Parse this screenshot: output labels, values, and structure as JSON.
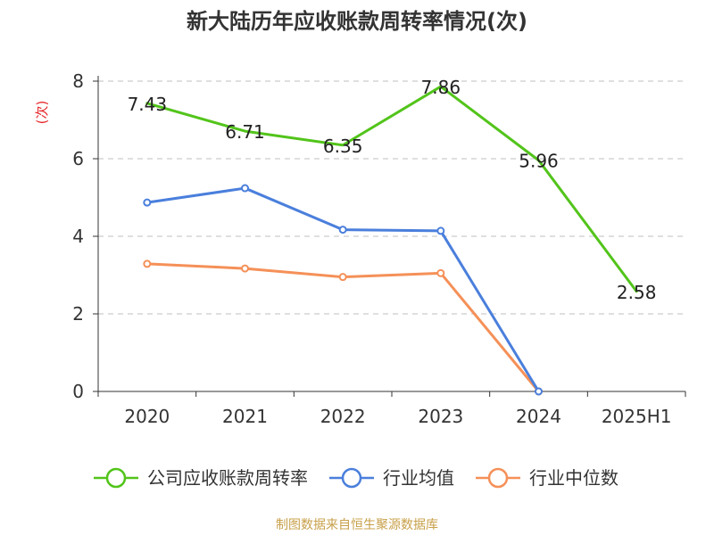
{
  "chart_data": {
    "type": "line",
    "title": "新大陆历年应收账款周转率情况(次)",
    "ylabel": "(次)",
    "xlabel": "",
    "categories": [
      "2020",
      "2021",
      "2022",
      "2023",
      "2024",
      "2025H1"
    ],
    "ylim": [
      0,
      8
    ],
    "yticks": [
      0,
      2,
      4,
      6,
      8
    ],
    "grid": true,
    "legend_position": "bottom",
    "series": [
      {
        "name": "公司应收账款周转率",
        "color": "#52c41a",
        "values": [
          7.43,
          6.71,
          6.35,
          7.86,
          5.96,
          2.58
        ],
        "show_labels": true,
        "show_markers": false
      },
      {
        "name": "行业均值",
        "color": "#4a7fdc",
        "values": [
          4.87,
          5.24,
          4.17,
          4.14,
          0,
          null
        ],
        "show_labels": false,
        "show_markers": true
      },
      {
        "name": "行业中位数",
        "color": "#f59058",
        "values": [
          3.29,
          3.17,
          2.95,
          3.05,
          0,
          null
        ],
        "show_labels": false,
        "show_markers": true
      }
    ]
  },
  "source": "制图数据来自恒生聚源数据库"
}
